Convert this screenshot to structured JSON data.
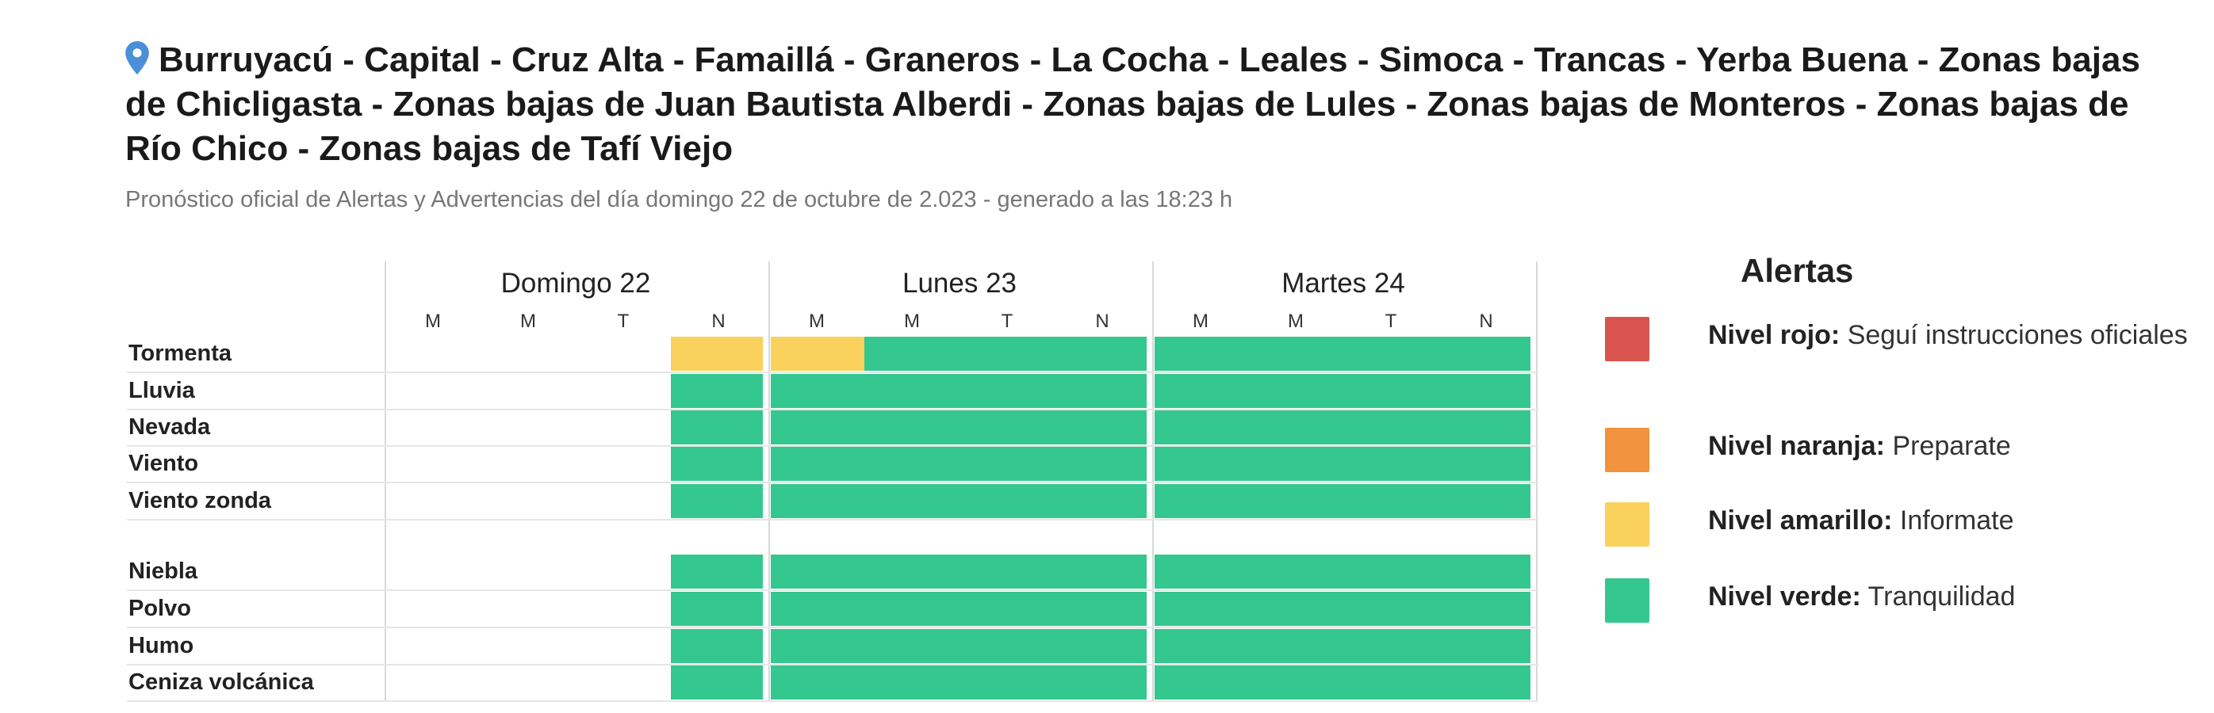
{
  "header": {
    "title": "Burruyacú - Capital - Cruz Alta - Famaillá - Graneros - La Cocha - Leales - Simoca - Trancas - Yerba Buena - Zonas bajas de Chicligasta - Zonas bajas de Juan Bautista Alberdi - Zonas bajas de Lules - Zonas bajas de Monteros - Zonas bajas de Río Chico - Zonas bajas de Tafí Viejo",
    "subtitle": "Pronóstico oficial de Alertas y Advertencias del día domingo 22 de octubre de 2.023 - generado a las 18:23 h"
  },
  "forecast": {
    "days": [
      {
        "label": "Domingo 22",
        "slots": [
          "M",
          "M",
          "T",
          "N"
        ]
      },
      {
        "label": "Lunes 23",
        "slots": [
          "M",
          "M",
          "T",
          "N"
        ]
      },
      {
        "label": "Martes 24",
        "slots": [
          "M",
          "M",
          "T",
          "N"
        ]
      }
    ],
    "rows": [
      {
        "label": "Tormenta",
        "levels": [
          "none",
          "none",
          "none",
          "amarillo",
          "amarillo",
          "verde",
          "verde",
          "verde",
          "verde",
          "verde",
          "verde",
          "verde"
        ]
      },
      {
        "label": "Lluvia",
        "levels": [
          "none",
          "none",
          "none",
          "verde",
          "verde",
          "verde",
          "verde",
          "verde",
          "verde",
          "verde",
          "verde",
          "verde"
        ]
      },
      {
        "label": "Nevada",
        "levels": [
          "none",
          "none",
          "none",
          "verde",
          "verde",
          "verde",
          "verde",
          "verde",
          "verde",
          "verde",
          "verde",
          "verde"
        ]
      },
      {
        "label": "Viento",
        "levels": [
          "none",
          "none",
          "none",
          "verde",
          "verde",
          "verde",
          "verde",
          "verde",
          "verde",
          "verde",
          "verde",
          "verde"
        ]
      },
      {
        "label": "Viento zonda",
        "levels": [
          "none",
          "none",
          "none",
          "verde",
          "verde",
          "verde",
          "verde",
          "verde",
          "verde",
          "verde",
          "verde",
          "verde"
        ]
      },
      {
        "label": "Niebla",
        "levels": [
          "none",
          "none",
          "none",
          "verde",
          "verde",
          "verde",
          "verde",
          "verde",
          "verde",
          "verde",
          "verde",
          "verde"
        ]
      },
      {
        "label": "Polvo",
        "levels": [
          "none",
          "none",
          "none",
          "verde",
          "verde",
          "verde",
          "verde",
          "verde",
          "verde",
          "verde",
          "verde",
          "verde"
        ]
      },
      {
        "label": "Humo",
        "levels": [
          "none",
          "none",
          "none",
          "verde",
          "verde",
          "verde",
          "verde",
          "verde",
          "verde",
          "verde",
          "verde",
          "verde"
        ]
      },
      {
        "label": "Ceniza volcánica",
        "levels": [
          "none",
          "none",
          "none",
          "verde",
          "verde",
          "verde",
          "verde",
          "verde",
          "verde",
          "verde",
          "verde",
          "verde"
        ]
      }
    ]
  },
  "legend": {
    "title": "Alertas",
    "items": [
      {
        "level": "rojo",
        "label": "Nivel rojo:",
        "desc": "Seguí instrucciones oficiales",
        "color": "#d9534f"
      },
      {
        "level": "naranja",
        "label": "Nivel naranja:",
        "desc": "Preparate",
        "color": "#f0923e"
      },
      {
        "level": "amarillo",
        "label": "Nivel amarillo:",
        "desc": "Informate",
        "color": "#f9d15c"
      },
      {
        "level": "verde",
        "label": "Nivel verde:",
        "desc": "Tranquilidad",
        "color": "#34c78f"
      }
    ]
  },
  "icons": {
    "location": "map-pin-icon"
  },
  "colors": {
    "pin": "#4a8fd8",
    "amarillo": "#f9d15c",
    "verde": "#34c78f"
  }
}
